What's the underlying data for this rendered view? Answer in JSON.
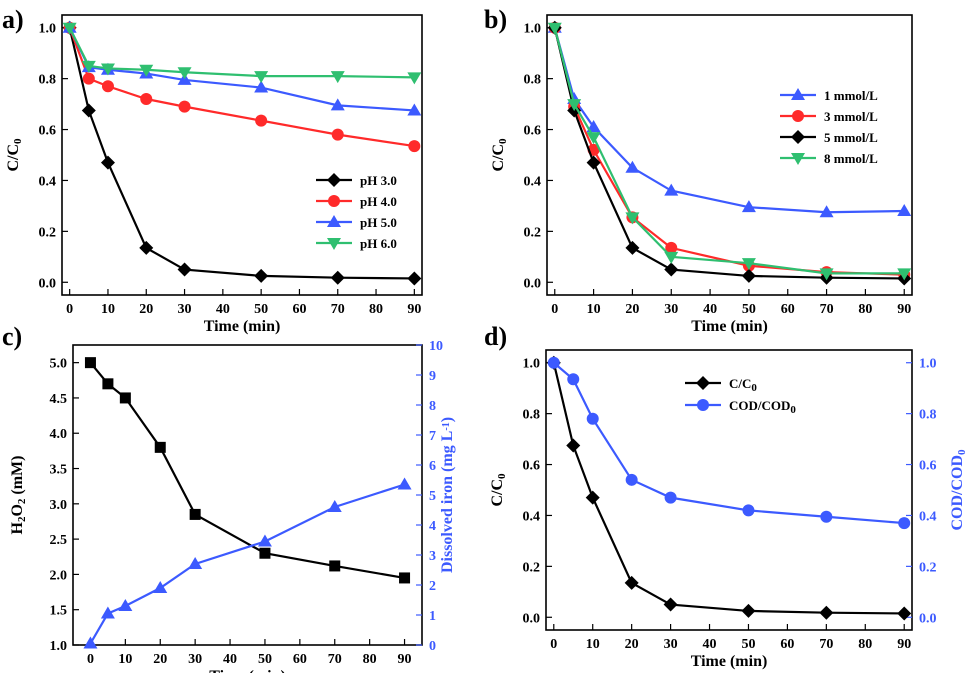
{
  "chart_data": [
    {
      "panel": "a)",
      "type": "line",
      "xlabel": "Time (min)",
      "ylabel": "C/C0",
      "xlim": [
        -2,
        92
      ],
      "ylim": [
        -0.05,
        1.05
      ],
      "xticks": [
        0,
        10,
        20,
        30,
        40,
        50,
        60,
        70,
        80,
        90
      ],
      "yticks": [
        0.0,
        0.2,
        0.4,
        0.6,
        0.8,
        1.0
      ],
      "ytick_labels": [
        "0.0",
        "0.2",
        "0.4",
        "0.6",
        "0.8",
        "1.0"
      ],
      "legend_position": "bottom-right",
      "x": [
        0,
        5,
        10,
        20,
        30,
        50,
        70,
        90
      ],
      "series": [
        {
          "name": "pH 3.0",
          "color": "#000000",
          "marker": "diamond",
          "values": [
            1.0,
            0.675,
            0.47,
            0.135,
            0.05,
            0.025,
            0.018,
            0.015
          ]
        },
        {
          "name": "pH 4.0",
          "color": "#ff2a2a",
          "marker": "circle",
          "values": [
            1.0,
            0.8,
            0.77,
            0.72,
            0.69,
            0.635,
            0.58,
            0.535
          ]
        },
        {
          "name": "pH 5.0",
          "color": "#3c5aff",
          "marker": "triangle-up",
          "values": [
            1.0,
            0.845,
            0.835,
            0.82,
            0.795,
            0.765,
            0.695,
            0.675
          ]
        },
        {
          "name": "pH 6.0",
          "color": "#2fbf70",
          "marker": "triangle-down",
          "values": [
            1.0,
            0.85,
            0.84,
            0.835,
            0.825,
            0.81,
            0.81,
            0.805
          ]
        }
      ]
    },
    {
      "panel": "b)",
      "type": "line",
      "xlabel": "Time (min)",
      "ylabel": "C/C0",
      "xlim": [
        -2,
        92
      ],
      "ylim": [
        -0.05,
        1.05
      ],
      "xticks": [
        0,
        10,
        20,
        30,
        40,
        50,
        60,
        70,
        80,
        90
      ],
      "yticks": [
        0.0,
        0.2,
        0.4,
        0.6,
        0.8,
        1.0
      ],
      "ytick_labels": [
        "0.0",
        "0.2",
        "0.4",
        "0.6",
        "0.8",
        "1.0"
      ],
      "legend_position": "right",
      "x": [
        0,
        5,
        10,
        20,
        30,
        50,
        70,
        90
      ],
      "series": [
        {
          "name": "1 mmol/L",
          "color": "#3c5aff",
          "marker": "triangle-up",
          "values": [
            1.0,
            0.72,
            0.61,
            0.45,
            0.36,
            0.295,
            0.275,
            0.28
          ]
        },
        {
          "name": "3 mmol/L",
          "color": "#ff2a2a",
          "marker": "circle",
          "values": [
            1.0,
            0.69,
            0.52,
            0.255,
            0.135,
            0.065,
            0.04,
            0.03
          ]
        },
        {
          "name": "5 mmol/L",
          "color": "#000000",
          "marker": "diamond",
          "values": [
            1.0,
            0.675,
            0.47,
            0.135,
            0.05,
            0.025,
            0.018,
            0.015
          ]
        },
        {
          "name": "8 mmol/L",
          "color": "#2fbf70",
          "marker": "triangle-down",
          "values": [
            1.0,
            0.7,
            0.57,
            0.255,
            0.1,
            0.075,
            0.035,
            0.035
          ]
        }
      ]
    },
    {
      "panel": "c)",
      "type": "line",
      "xlabel": "Time (min)",
      "ylabel": "H2O2 (mM)",
      "ylabel_right": "Dissolved iron (mg L-1)",
      "xlim": [
        -5,
        95
      ],
      "ylim": [
        1.0,
        5.25
      ],
      "ylim_right": [
        0,
        10
      ],
      "xticks": [
        0,
        10,
        20,
        30,
        40,
        50,
        60,
        70,
        80,
        90
      ],
      "yticks": [
        1.0,
        1.5,
        2.0,
        2.5,
        3.0,
        3.5,
        4.0,
        4.5,
        5.0
      ],
      "ytick_labels": [
        "1.0",
        "1.5",
        "2.0",
        "2.5",
        "3.0",
        "3.5",
        "4.0",
        "4.5",
        "5.0"
      ],
      "yticks_right": [
        0,
        1,
        2,
        3,
        4,
        5,
        6,
        7,
        8,
        9,
        10
      ],
      "ytick_labels_right": [
        "0",
        "1",
        "2",
        "3",
        "4",
        "5",
        "6",
        "7",
        "8",
        "9",
        "10"
      ],
      "x": [
        0,
        5,
        10,
        20,
        30,
        50,
        70,
        90
      ],
      "series": [
        {
          "axis": "left",
          "color": "#000000",
          "marker": "square",
          "values": [
            5.0,
            4.7,
            4.5,
            3.8,
            2.85,
            2.3,
            2.12,
            1.95
          ]
        },
        {
          "axis": "right",
          "color": "#3c5aff",
          "marker": "triangle-up",
          "values": [
            0.05,
            1.05,
            1.3,
            1.9,
            2.7,
            3.45,
            4.6,
            5.35
          ]
        }
      ]
    },
    {
      "panel": "d)",
      "type": "line",
      "xlabel": "Time (min)",
      "ylabel": "C/C0",
      "ylabel_right": "COD/COD0",
      "xlim": [
        -2,
        92
      ],
      "ylim": [
        -0.05,
        1.05
      ],
      "ylim_right": [
        -0.05,
        1.05
      ],
      "xticks": [
        0,
        10,
        20,
        30,
        40,
        50,
        60,
        70,
        80,
        90
      ],
      "yticks": [
        0.0,
        0.2,
        0.4,
        0.6,
        0.8,
        1.0
      ],
      "ytick_labels": [
        "0.0",
        "0.2",
        "0.4",
        "0.6",
        "0.8",
        "1.0"
      ],
      "yticks_right": [
        0.0,
        0.2,
        0.4,
        0.6,
        0.8,
        1.0
      ],
      "ytick_labels_right": [
        "0.0",
        "0.2",
        "0.4",
        "0.6",
        "0.8",
        "1.0"
      ],
      "legend_position": "top-right",
      "x": [
        0,
        5,
        10,
        20,
        30,
        50,
        70,
        90
      ],
      "series": [
        {
          "name": "C/C0",
          "axis": "left",
          "color": "#000000",
          "marker": "diamond",
          "values": [
            1.0,
            0.675,
            0.47,
            0.135,
            0.05,
            0.025,
            0.018,
            0.015
          ]
        },
        {
          "name": "COD/COD0",
          "axis": "right",
          "color": "#3c5aff",
          "marker": "circle",
          "values": [
            1.0,
            0.935,
            0.78,
            0.54,
            0.47,
            0.42,
            0.395,
            0.37
          ]
        }
      ]
    }
  ]
}
